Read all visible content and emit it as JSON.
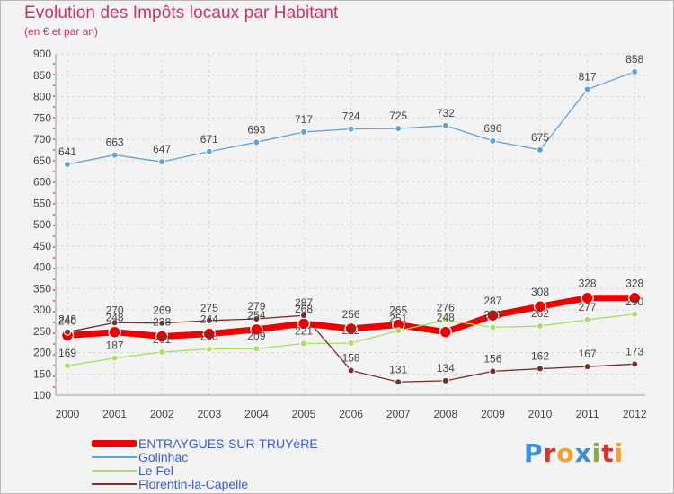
{
  "header": {
    "title": "Evolution des Impôts locaux par Habitant",
    "subtitle": "(en € et par an)"
  },
  "logo": {
    "text": "Proxiti",
    "letters": [
      {
        "ch": "P",
        "color": "#3a8fd8"
      },
      {
        "ch": "r",
        "color": "#e0312b"
      },
      {
        "ch": "o",
        "color": "#f2a22a"
      },
      {
        "ch": "x",
        "color": "#3a8fd8"
      },
      {
        "ch": "i",
        "color": "#7ab630"
      },
      {
        "ch": "t",
        "color": "#e0312b"
      },
      {
        "ch": "i",
        "color": "#f2a22a"
      }
    ]
  },
  "chart_data": {
    "type": "line",
    "title": "Evolution des Impôts locaux par Habitant",
    "subtitle": "(en € et par an)",
    "x": [
      "2000",
      "2001",
      "2002",
      "2003",
      "2004",
      "2005",
      "2006",
      "2007",
      "2008",
      "2009",
      "2010",
      "2011",
      "2012"
    ],
    "ylim": [
      100,
      900
    ],
    "yticks": [
      100,
      150,
      200,
      250,
      300,
      350,
      400,
      450,
      500,
      550,
      600,
      650,
      700,
      750,
      800,
      850,
      900
    ],
    "grid": true,
    "legend_position": "bottom-left",
    "series": [
      {
        "name": "ENTRAYGUES-SUR-TRUYèRE",
        "color": "#ee0000",
        "width": 7,
        "values": [
          240,
          248,
          238,
          244,
          254,
          268,
          256,
          265,
          248,
          287,
          308,
          328,
          328
        ],
        "labels": [
          "240",
          "248",
          "238",
          "244",
          "254",
          "268",
          "256",
          "265",
          "248",
          "287",
          "308",
          "328",
          "328"
        ]
      },
      {
        "name": "Golinhac",
        "color": "#5fa3d8",
        "width": 1.3,
        "values": [
          641,
          663,
          647,
          671,
          693,
          717,
          724,
          725,
          732,
          696,
          675,
          817,
          858
        ],
        "labels": [
          "641",
          "663",
          "647",
          "671",
          "693",
          "717",
          "724",
          "725",
          "732",
          "696",
          "675",
          "817",
          "858"
        ]
      },
      {
        "name": "Le Fel",
        "color": "#a6e05c",
        "width": 1.3,
        "values": [
          169,
          187,
          201,
          208,
          209,
          221,
          222,
          251,
          276,
          259,
          262,
          277,
          290
        ],
        "labels": [
          "169",
          "187",
          "201",
          "208",
          "209",
          "221",
          "222",
          "251",
          "276",
          "259",
          "262",
          "277",
          "290"
        ]
      },
      {
        "name": "Florentin-la-Capelle",
        "color": "#7a2b2b",
        "width": 1.3,
        "values": [
          248,
          270,
          269,
          275,
          279,
          287,
          158,
          131,
          134,
          156,
          162,
          167,
          173
        ],
        "labels": [
          "248",
          "270",
          "269",
          "275",
          "279",
          "287",
          "158",
          "131",
          "134",
          "156",
          "162",
          "167",
          "173"
        ]
      }
    ]
  }
}
